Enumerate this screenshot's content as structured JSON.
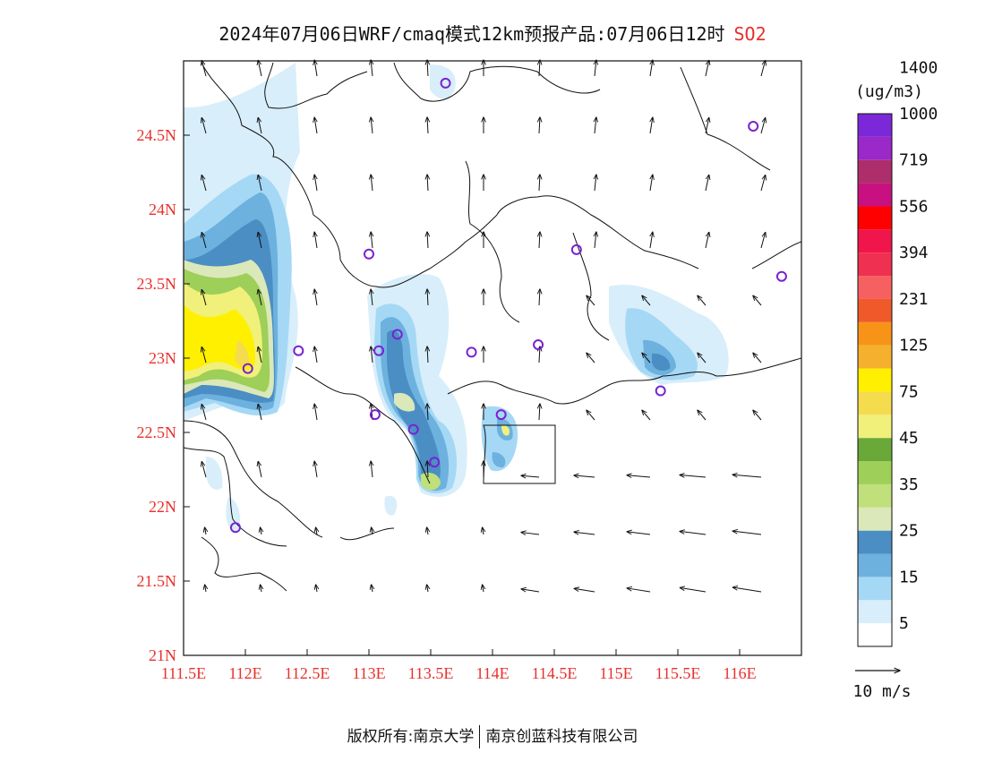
{
  "title": {
    "main": "2024年07月06日WRF/cmaq模式12km预报产品:07月06日12时",
    "pollutant": "SO2"
  },
  "map": {
    "lon_range": [
      111.5,
      116.5
    ],
    "lat_range": [
      21.0,
      25.0
    ],
    "lon_ticks": [
      "111.5E",
      "112E",
      "112.5E",
      "113E",
      "113.5E",
      "114E",
      "114.5E",
      "115E",
      "115.5E",
      "116E"
    ],
    "lat_ticks": [
      "21N",
      "21.5N",
      "22N",
      "22.5N",
      "23N",
      "23.5N",
      "24N",
      "24.5N"
    ],
    "tick_color": "#e8302c"
  },
  "legend": {
    "unit": "(ug/m3)",
    "labels": [
      "5",
      "15",
      "25",
      "35",
      "45",
      "75",
      "125",
      "231",
      "394",
      "556",
      "719",
      "1000",
      "1400"
    ],
    "colors": [
      "#ffffff",
      "#d8eefa",
      "#a5d8f5",
      "#6db1de",
      "#4a8ec4",
      "#dbe8b9",
      "#bfe07a",
      "#9ecf58",
      "#6aa83a",
      "#f0f07a",
      "#f5dc4e",
      "#fff000",
      "#f5b02e",
      "#f79418",
      "#f05a2a",
      "#f76060",
      "#f03050",
      "#f0154a",
      "#ff0000",
      "#c81080",
      "#ad2e6a",
      "#9b28c8",
      "#7a28d8"
    ]
  },
  "wind_scale": {
    "label": "10 m/s"
  },
  "stations": [
    {
      "lon": 113.62,
      "lat": 24.85
    },
    {
      "lon": 116.11,
      "lat": 24.56
    },
    {
      "lon": 113.0,
      "lat": 23.7
    },
    {
      "lon": 114.68,
      "lat": 23.73
    },
    {
      "lon": 116.34,
      "lat": 23.55
    },
    {
      "lon": 112.43,
      "lat": 23.05
    },
    {
      "lon": 113.08,
      "lat": 23.05
    },
    {
      "lon": 113.23,
      "lat": 23.16
    },
    {
      "lon": 113.83,
      "lat": 23.04
    },
    {
      "lon": 114.37,
      "lat": 23.09
    },
    {
      "lon": 112.02,
      "lat": 22.93
    },
    {
      "lon": 113.05,
      "lat": 22.62
    },
    {
      "lon": 113.36,
      "lat": 22.52
    },
    {
      "lon": 114.07,
      "lat": 22.62
    },
    {
      "lon": 113.53,
      "lat": 22.3
    },
    {
      "lon": 115.36,
      "lat": 22.78
    },
    {
      "lon": 111.92,
      "lat": 21.86
    }
  ],
  "footer": {
    "left": "版权所有:南京大学",
    "right": "南京创蓝科技有限公司"
  }
}
